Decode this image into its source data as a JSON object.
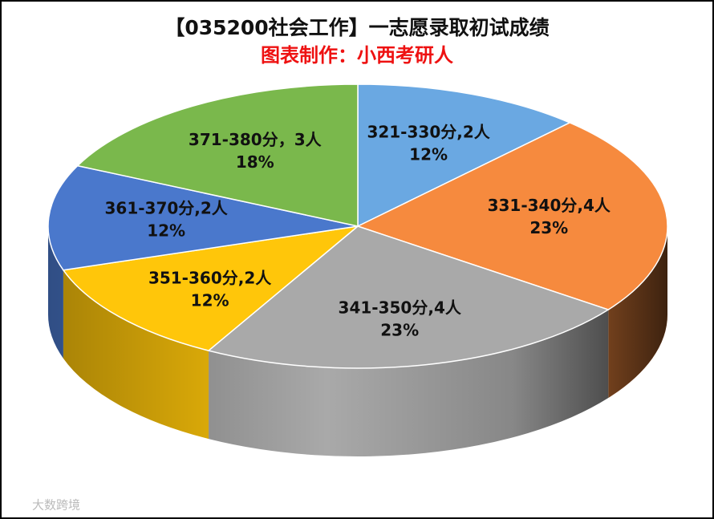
{
  "chart_data": {
    "type": "pie3d",
    "title": "【035200社会工作】一志愿录取初试成绩",
    "subtitle": "图表制作：小西考研人",
    "categories": [
      "321-330分,2人",
      "331-340分,4人",
      "341-350分,4人",
      "351-360分,2人",
      "361-370分,2人",
      "371-380分，3人"
    ],
    "values": [
      12,
      23,
      23,
      12,
      12,
      18
    ],
    "value_labels": [
      "12%",
      "23%",
      "23%",
      "12%",
      "12%",
      "18%"
    ],
    "colors": [
      "#6aa8e2",
      "#f68a3e",
      "#a9a9a9",
      "#ffc60a",
      "#4a78cc",
      "#7ab84c"
    ],
    "watermark": "大数跨境"
  }
}
